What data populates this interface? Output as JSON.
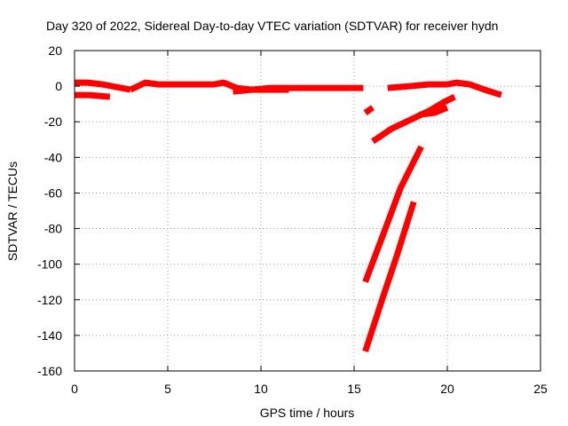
{
  "chart_data": {
    "type": "line",
    "title": "Day 320 of 2022, Sidereal Day-to-day VTEC variation (SDTVAR) for receiver hydn",
    "xlabel": "GPS time / hours",
    "ylabel": "SDTVAR / TECUs",
    "xlim": [
      0,
      25
    ],
    "ylim": [
      -160,
      20
    ],
    "xticks": [
      0,
      5,
      10,
      15,
      20,
      25
    ],
    "yticks": [
      -160,
      -140,
      -120,
      -100,
      -80,
      -60,
      -40,
      -20,
      0,
      20
    ],
    "grid": true,
    "grid_style": "dotted",
    "legend": "none",
    "series_color": "#ff0000",
    "series": [
      {
        "x": [
          0,
          0.7,
          1.5,
          2.5,
          3.0
        ],
        "y": [
          2,
          2,
          1,
          -1,
          -2
        ]
      },
      {
        "x": [
          0,
          0.8,
          1.9
        ],
        "y": [
          -5,
          -5,
          -6
        ]
      },
      {
        "x": [
          3.0,
          3.4,
          3.8,
          4.5,
          5.5,
          6.5,
          7.5,
          8.0,
          8.7,
          9.5,
          10.5,
          11.5,
          12.5,
          13.5,
          14.5,
          15.5
        ],
        "y": [
          -2,
          0,
          2,
          1,
          1,
          1,
          1,
          2,
          -1,
          -2,
          -1,
          -1,
          -1,
          -1,
          -1,
          -1
        ]
      },
      {
        "x": [
          8.5,
          9.5,
          10.5,
          11.5
        ],
        "y": [
          -3,
          -2,
          -2,
          -2
        ]
      },
      {
        "x": [
          15.6,
          16.0
        ],
        "y": [
          -15,
          -12
        ]
      },
      {
        "x": [
          16.8,
          18.0,
          19.0,
          20.0,
          20.5,
          21.2,
          22.0,
          22.9
        ],
        "y": [
          -1,
          0,
          1,
          1,
          2,
          1,
          -2,
          -5
        ]
      },
      {
        "x": [
          16.0,
          17.0,
          18.0,
          19.0,
          19.8,
          20.4
        ],
        "y": [
          -31,
          -24,
          -19,
          -14,
          -9,
          -6
        ]
      },
      {
        "x": [
          18.5,
          19.3,
          20.0
        ],
        "y": [
          -16,
          -15,
          -12
        ]
      },
      {
        "x": [
          15.6,
          16.5,
          17.5,
          18.6
        ],
        "y": [
          -110,
          -85,
          -57,
          -34
        ]
      },
      {
        "x": [
          15.6,
          16.5,
          17.3,
          18.2
        ],
        "y": [
          -149,
          -120,
          -95,
          -65
        ]
      }
    ]
  }
}
